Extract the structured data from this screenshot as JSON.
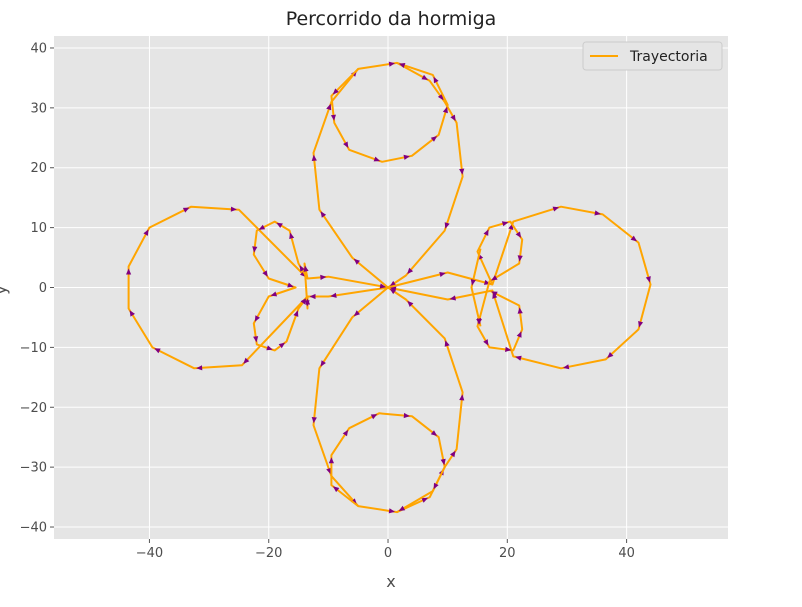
{
  "chart_data": {
    "type": "line",
    "title": "Percorrido da hormiga",
    "xlabel": "x",
    "ylabel": "y",
    "xlim": [
      -56,
      57
    ],
    "ylim": [
      -42,
      42
    ],
    "x_ticks": [
      -40,
      -20,
      0,
      20,
      40
    ],
    "x_tick_labels": [
      "−40",
      "−20",
      "0",
      "20",
      "40"
    ],
    "y_ticks": [
      -40,
      -30,
      -20,
      -10,
      0,
      10,
      20,
      30,
      40
    ],
    "y_tick_labels": [
      "−40",
      "−30",
      "−20",
      "−10",
      "0",
      "10",
      "20",
      "30",
      "40"
    ],
    "grid": true,
    "legend_position": "top-right",
    "series": [
      {
        "name": "Trayectoria",
        "color": "#ffa500",
        "arrow_color": "#800080",
        "segments": [
          {
            "points": [
              [
                0,
                0
              ],
              [
                -6,
                5
              ],
              [
                -11.5,
                13
              ],
              [
                -12.5,
                22.5
              ],
              [
                -9.5,
                31
              ],
              [
                -5,
                36.5
              ],
              [
                1.5,
                37.5
              ],
              [
                7,
                34.5
              ],
              [
                9.5,
                31
              ],
              [
                11.5,
                27.5
              ],
              [
                12.5,
                18.5
              ],
              [
                9.5,
                9.5
              ],
              [
                3,
                2
              ],
              [
                0,
                0
              ]
            ]
          },
          {
            "points": [
              [
                0,
                0
              ],
              [
                -6,
                -5
              ],
              [
                -11.5,
                -13.5
              ],
              [
                -12.5,
                -23
              ],
              [
                -9.5,
                -31.5
              ],
              [
                -5,
                -36.5
              ],
              [
                1.5,
                -37.5
              ],
              [
                7,
                -35
              ],
              [
                9.5,
                -30
              ],
              [
                11.5,
                -27
              ],
              [
                12.5,
                -17.5
              ],
              [
                9.5,
                -8.5
              ],
              [
                3,
                -2
              ],
              [
                0,
                0
              ]
            ]
          },
          {
            "points": [
              [
                0,
                0
              ],
              [
                10,
                2.5
              ],
              [
                17.5,
                0.5
              ],
              [
                21,
                11
              ],
              [
                29,
                13.5
              ],
              [
                36,
                12.2
              ],
              [
                42,
                7.5
              ],
              [
                44,
                0.5
              ],
              [
                42,
                -7
              ],
              [
                36.5,
                -12
              ],
              [
                29,
                -13.5
              ],
              [
                21,
                -11.5
              ],
              [
                17.5,
                -0.5
              ],
              [
                10,
                -2
              ],
              [
                0,
                0
              ]
            ]
          },
          {
            "points": [
              [
                0,
                0
              ],
              [
                -10,
                -1.5
              ],
              [
                -13.5,
                -1.5
              ],
              [
                -24.5,
                -13
              ],
              [
                -32.5,
                -13.5
              ],
              [
                -39.5,
                -10
              ],
              [
                -43.5,
                -3.5
              ],
              [
                -43.5,
                3.5
              ],
              [
                -40,
                10
              ],
              [
                -33,
                13.5
              ],
              [
                -25,
                13
              ],
              [
                -13.5,
                1.5
              ],
              [
                -10,
                1.8
              ],
              [
                0,
                0
              ]
            ]
          },
          {
            "points": [
              [
                -5,
                36.5
              ],
              [
                -9.5,
                32
              ],
              [
                -9,
                27.5
              ],
              [
                -6.5,
                23
              ],
              [
                -1,
                21
              ],
              [
                4,
                22
              ],
              [
                8.5,
                25.5
              ],
              [
                10,
                30.5
              ],
              [
                7.5,
                35.5
              ],
              [
                1.5,
                37.5
              ]
            ]
          },
          {
            "points": [
              [
                -5,
                -36.5
              ],
              [
                -9.5,
                -33
              ],
              [
                -9.5,
                -28
              ],
              [
                -6.5,
                -23.5
              ],
              [
                -1.5,
                -21
              ],
              [
                4,
                -21.5
              ],
              [
                8.5,
                -25
              ],
              [
                9.5,
                -30
              ],
              [
                7.5,
                -34
              ],
              [
                1.5,
                -37.5
              ]
            ]
          },
          {
            "points": [
              [
                17.5,
                0.5
              ],
              [
                15,
                6
              ],
              [
                17,
                10
              ],
              [
                20.5,
                11
              ],
              [
                22.5,
                8
              ],
              [
                22,
                4
              ],
              [
                17,
                1
              ],
              [
                15,
                -6.5
              ],
              [
                17,
                -10
              ],
              [
                21,
                -10.5
              ],
              [
                22.5,
                -7
              ],
              [
                22,
                -3
              ],
              [
                17,
                -0.5
              ]
            ]
          },
          {
            "points": [
              [
                -13.5,
                1.5
              ],
              [
                -15,
                4
              ],
              [
                -16.5,
                9.5
              ],
              [
                -19,
                11
              ],
              [
                -22,
                9.5
              ],
              [
                -22.5,
                5.5
              ],
              [
                -20,
                1.5
              ],
              [
                -15.5,
                0
              ],
              [
                -20,
                -1.5
              ],
              [
                -22.5,
                -6
              ],
              [
                -22,
                -9.5
              ],
              [
                -19,
                -10.5
              ],
              [
                -17,
                -9
              ],
              [
                -15,
                -3.5
              ],
              [
                -13.5,
                -1.5
              ]
            ]
          },
          {
            "points": [
              [
                -13.5,
                1.5
              ],
              [
                -14,
                4
              ],
              [
                -13.5,
                -3.5
              ],
              [
                -13.5,
                -1.5
              ]
            ]
          },
          {
            "points": [
              [
                15.5,
                6.5
              ],
              [
                14,
                0
              ],
              [
                15.5,
                -6.5
              ]
            ]
          }
        ]
      }
    ]
  }
}
